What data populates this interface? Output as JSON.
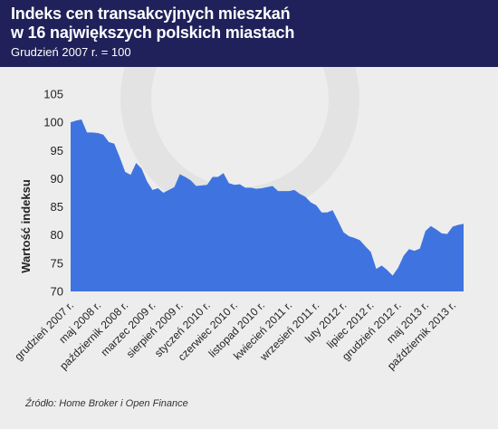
{
  "header": {
    "title_line1": "Indeks cen transakcyjnych mieszkań",
    "title_line2": "w 16 największych polskich miastach",
    "subtitle": "Grudzień 2007 r. = 100"
  },
  "source": "Źródło: Home Broker i Open Finance",
  "colors": {
    "header_bg": "#20215a",
    "background": "#ededed",
    "area_fill": "#3f74e0"
  },
  "chart_data": {
    "type": "area",
    "title": "Indeks cen transakcyjnych mieszkań w 16 największych polskich miastach",
    "subtitle": "Grudzień 2007 r. = 100",
    "ylabel": "Wartość indeksu",
    "xlabel": "",
    "ylim": [
      70,
      105
    ],
    "yticks": [
      70,
      75,
      80,
      85,
      90,
      95,
      100,
      105
    ],
    "grid": false,
    "xticks": [
      {
        "label": "grudzień 2007 r.",
        "index": 0
      },
      {
        "label": "maj 2008 r.",
        "index": 5
      },
      {
        "label": "październik 2008 r.",
        "index": 10
      },
      {
        "label": "marzec 2009 r.",
        "index": 15
      },
      {
        "label": "sierpień 2009 r.",
        "index": 20
      },
      {
        "label": "styczeń 2010 r.",
        "index": 25
      },
      {
        "label": "czerwiec 2010 r.",
        "index": 30
      },
      {
        "label": "listopad 2010 r.",
        "index": 35
      },
      {
        "label": "kwiecień 2011 r.",
        "index": 40
      },
      {
        "label": "wrzesień 2011 r.",
        "index": 45
      },
      {
        "label": "luty 2012 r.",
        "index": 50
      },
      {
        "label": "lipiec 2012 r.",
        "index": 55
      },
      {
        "label": "grudzień 2012 r.",
        "index": 60
      },
      {
        "label": "maj 2013 r.",
        "index": 65
      },
      {
        "label": "październik 2013 r.",
        "index": 70
      }
    ],
    "series": [
      {
        "values": [
          100.0,
          100.3,
          100.5,
          98.2,
          98.2,
          98.1,
          97.8,
          96.5,
          96.2,
          93.8,
          91.2,
          90.7,
          92.8,
          91.8,
          89.5,
          88.0,
          88.3,
          87.5,
          88.0,
          88.5,
          90.8,
          90.3,
          89.7,
          88.7,
          88.8,
          88.9,
          90.3,
          90.3,
          91.0,
          89.2,
          88.9,
          89.0,
          88.4,
          88.4,
          88.2,
          88.3,
          88.5,
          88.7,
          87.8,
          87.8,
          87.8,
          88.0,
          87.3,
          86.8,
          85.8,
          85.3,
          84.0,
          84.0,
          84.4,
          82.5,
          80.5,
          79.8,
          79.5,
          79.1,
          78.0,
          77.0,
          74.0,
          74.6,
          73.8,
          72.8,
          74.2,
          76.3,
          77.5,
          77.2,
          77.6,
          80.7,
          81.6,
          81.0,
          80.3,
          80.2,
          81.5,
          81.8,
          82.0
        ]
      }
    ]
  }
}
